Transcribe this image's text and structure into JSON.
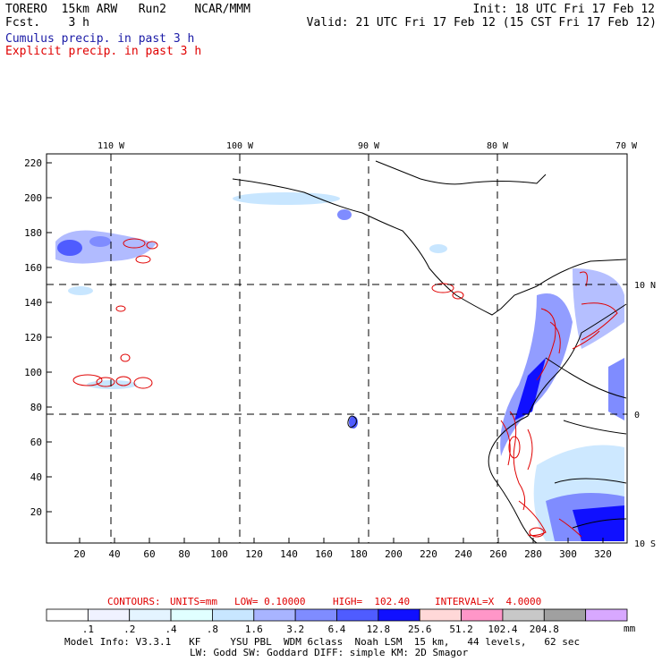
{
  "header": {
    "left_line1": "TORERO  15km ARW   Run2    NCAR/MMM",
    "left_line2": "Fcst.    3 h",
    "right_line1": "Init: 18 UTC Fri 17 Feb 12",
    "right_line2": "Valid: 21 UTC Fri 17 Feb 12 (15 CST Fri 17 Feb 12)",
    "legend1": "Cumulus precip. in past 3 h",
    "legend2": "Explicit precip. in past 3 h"
  },
  "colors": {
    "cumulus": "#1a1aa6",
    "explicit": "#e00000",
    "contour": "#e00000",
    "coast": "#000000"
  },
  "axes": {
    "lon_labels": [
      "110 W",
      "100 W",
      "90 W",
      "80 W",
      "70 W"
    ],
    "lat_labels": [
      "10 N",
      "0",
      "10 S"
    ],
    "y_ticks": [
      "220",
      "200",
      "180",
      "160",
      "140",
      "120",
      "100",
      "80",
      "60",
      "40",
      "20"
    ],
    "x_ticks": [
      "20",
      "40",
      "60",
      "80",
      "100",
      "120",
      "140",
      "160",
      "180",
      "200",
      "220",
      "240",
      "260",
      "280",
      "300",
      "320"
    ]
  },
  "contours_line": {
    "label": "CONTOURS:",
    "units": "UNITS=mm",
    "low": "LOW= 0.10000",
    "high": "HIGH=  102.40",
    "interval": "INTERVAL=X  4.0000"
  },
  "colorbar": {
    "colors": [
      "#ffffff",
      "#f0f2ff",
      "#e4f4ff",
      "#e0ffff",
      "#c8e6ff",
      "#a8b4ff",
      "#7f8cff",
      "#4f5cff",
      "#1010ff",
      "#ffd8d8",
      "#ff96c8",
      "#c8c8c8",
      "#a0a0a0",
      "#d8a8ff"
    ],
    "labels": [
      ".1",
      ".2",
      ".4",
      ".8",
      "1.6",
      "3.2",
      "6.4",
      "12.8",
      "25.6",
      "51.2",
      "102.4",
      "204.8"
    ],
    "unit": "mm"
  },
  "footer": {
    "line1": "Model Info: V3.3.1   KF     YSU PBL  WDM 6class  Noah LSM  15 km,   44 levels,   62 sec",
    "line2": "LW: Godd SW: Goddard DIFF: simple KM: 2D Smagor"
  }
}
